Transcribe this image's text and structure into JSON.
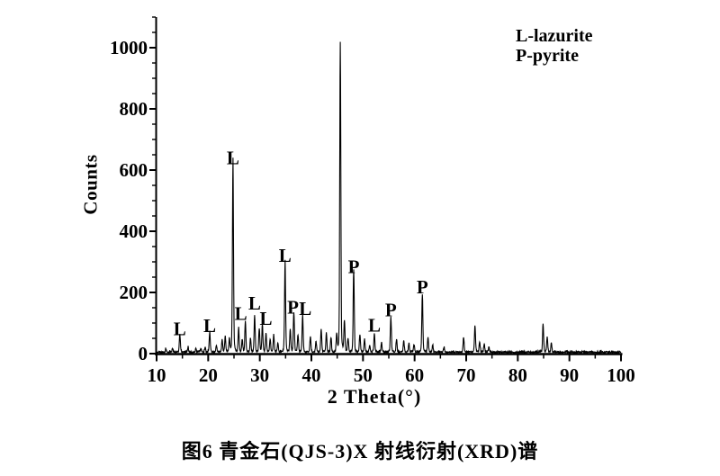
{
  "figure": {
    "caption": "图6  青金石(QJS-3)X 射线衍射(XRD)谱",
    "background_color": "#ffffff",
    "ink_color": "#000000"
  },
  "chart_data": {
    "type": "line",
    "title": "",
    "xlabel": "2 Theta(°)",
    "ylabel": "Counts",
    "xlim": [
      10,
      100
    ],
    "ylim": [
      0,
      1100
    ],
    "x_major_ticks": [
      10,
      20,
      30,
      40,
      50,
      60,
      70,
      80,
      90,
      100
    ],
    "x_minor_tick_step": 5,
    "y_major_ticks": [
      0,
      200,
      400,
      600,
      800,
      1000
    ],
    "y_minor_tick_step": 50,
    "grid": false,
    "legend": {
      "position": "top-right",
      "entries": [
        "L-lazurite",
        "P-pyrite"
      ]
    },
    "series_name": "XRD pattern of lapis lazuli sample QJS-3",
    "baseline_noise_counts": [
      2,
      10
    ],
    "peaks": [
      {
        "two_theta": 11.8,
        "counts": 8
      },
      {
        "two_theta": 13.1,
        "counts": 10
      },
      {
        "two_theta": 14.5,
        "counts": 55,
        "label": "L",
        "label_dy": 3
      },
      {
        "two_theta": 16.1,
        "counts": 14
      },
      {
        "two_theta": 17.6,
        "counts": 11
      },
      {
        "two_theta": 18.6,
        "counts": 13
      },
      {
        "two_theta": 19.4,
        "counts": 15
      },
      {
        "two_theta": 20.3,
        "counts": 65,
        "label": "L",
        "label_dy": 3
      },
      {
        "two_theta": 21.6,
        "counts": 20
      },
      {
        "two_theta": 22.7,
        "counts": 38
      },
      {
        "two_theta": 23.3,
        "counts": 52
      },
      {
        "two_theta": 24.1,
        "counts": 42
      },
      {
        "two_theta": 24.8,
        "counts": 605,
        "label": "L"
      },
      {
        "two_theta": 25.9,
        "counts": 78
      },
      {
        "two_theta": 26.6,
        "counts": 40
      },
      {
        "two_theta": 27.2,
        "counts": 95,
        "label": "L",
        "label_dx": -5
      },
      {
        "two_theta": 28.2,
        "counts": 45
      },
      {
        "two_theta": 29.0,
        "counts": 115,
        "label": "L",
        "label_dy": -5
      },
      {
        "two_theta": 29.9,
        "counts": 72
      },
      {
        "two_theta": 30.5,
        "counts": 85,
        "label": "L",
        "label_dx": 4,
        "label_dy": 2
      },
      {
        "two_theta": 31.2,
        "counts": 60
      },
      {
        "two_theta": 32.0,
        "counts": 42
      },
      {
        "two_theta": 32.7,
        "counts": 55
      },
      {
        "two_theta": 33.5,
        "counts": 28
      },
      {
        "two_theta": 34.9,
        "counts": 285,
        "label": "L"
      },
      {
        "two_theta": 35.9,
        "counts": 70
      },
      {
        "two_theta": 36.6,
        "counts": 125,
        "label": "P",
        "label_dx": -1,
        "label_dy": 3
      },
      {
        "two_theta": 37.4,
        "counts": 55
      },
      {
        "two_theta": 38.3,
        "counts": 118,
        "label": "L",
        "label_dx": 3,
        "label_dy": 2
      },
      {
        "two_theta": 39.8,
        "counts": 50
      },
      {
        "two_theta": 40.9,
        "counts": 35
      },
      {
        "two_theta": 41.9,
        "counts": 70
      },
      {
        "two_theta": 42.9,
        "counts": 60
      },
      {
        "two_theta": 43.8,
        "counts": 45
      },
      {
        "two_theta": 44.9,
        "counts": 55
      },
      {
        "two_theta": 45.6,
        "counts": 965
      },
      {
        "two_theta": 46.4,
        "counts": 100
      },
      {
        "two_theta": 47.1,
        "counts": 45
      },
      {
        "two_theta": 48.2,
        "counts": 258,
        "label": "P",
        "label_dy": 3
      },
      {
        "two_theta": 49.4,
        "counts": 55
      },
      {
        "two_theta": 50.3,
        "counts": 40
      },
      {
        "two_theta": 51.3,
        "counts": 22
      },
      {
        "two_theta": 52.2,
        "counts": 58,
        "label": "L"
      },
      {
        "two_theta": 53.6,
        "counts": 30
      },
      {
        "two_theta": 55.4,
        "counts": 108,
        "label": "P"
      },
      {
        "two_theta": 56.5,
        "counts": 40
      },
      {
        "two_theta": 57.9,
        "counts": 35
      },
      {
        "two_theta": 58.9,
        "counts": 28
      },
      {
        "two_theta": 59.9,
        "counts": 24
      },
      {
        "two_theta": 61.5,
        "counts": 182,
        "label": "P"
      },
      {
        "two_theta": 62.6,
        "counts": 45
      },
      {
        "two_theta": 63.5,
        "counts": 22
      },
      {
        "two_theta": 65.7,
        "counts": 14
      },
      {
        "two_theta": 69.5,
        "counts": 46
      },
      {
        "two_theta": 71.7,
        "counts": 82
      },
      {
        "two_theta": 72.6,
        "counts": 32
      },
      {
        "two_theta": 73.5,
        "counts": 24
      },
      {
        "two_theta": 74.4,
        "counts": 16
      },
      {
        "two_theta": 84.9,
        "counts": 88
      },
      {
        "two_theta": 85.7,
        "counts": 48
      },
      {
        "two_theta": 86.5,
        "counts": 28
      }
    ]
  }
}
